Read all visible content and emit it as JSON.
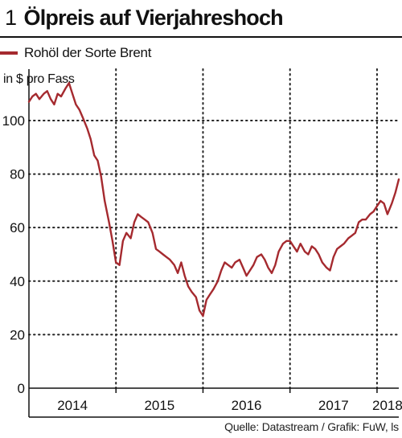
{
  "header": {
    "number": "1",
    "title": "Ölpreis auf Vierjahreshoch"
  },
  "legend": {
    "label": "Rohöl der Sorte Brent",
    "color": "#a52a2f"
  },
  "unit_label": "in $ pro Fass",
  "source": "Quelle: Datastream / Grafik: FuW, ls",
  "chart_data": {
    "type": "line",
    "title": "Ölpreis auf Vierjahreshoch",
    "ylabel": "in $ pro Fass",
    "xlabel": "",
    "ylim": [
      0,
      115
    ],
    "yticks": [
      0,
      20,
      40,
      60,
      80,
      100
    ],
    "xlim": [
      2014.0,
      2018.25
    ],
    "xticks": [
      {
        "label": "2014",
        "at": 2014.5
      },
      {
        "label": "2015",
        "at": 2015.5
      },
      {
        "label": "2016",
        "at": 2016.5
      },
      {
        "label": "2017",
        "at": 2017.5
      },
      {
        "label": "2018",
        "at": 2018.12
      }
    ],
    "year_boundaries": [
      2015.0,
      2016.0,
      2017.0,
      2018.0
    ],
    "grid": true,
    "legend": "top-left",
    "series": [
      {
        "name": "Rohöl der Sorte Brent",
        "color": "#a52a2f",
        "x": [
          2014.0,
          2014.04,
          2014.08,
          2014.12,
          2014.17,
          2014.21,
          2014.25,
          2014.29,
          2014.33,
          2014.37,
          2014.42,
          2014.46,
          2014.5,
          2014.54,
          2014.58,
          2014.62,
          2014.67,
          2014.71,
          2014.75,
          2014.79,
          2014.83,
          2014.87,
          2014.92,
          2014.96,
          2015.0,
          2015.04,
          2015.08,
          2015.12,
          2015.17,
          2015.21,
          2015.25,
          2015.29,
          2015.33,
          2015.37,
          2015.42,
          2015.46,
          2015.5,
          2015.54,
          2015.58,
          2015.62,
          2015.67,
          2015.71,
          2015.75,
          2015.79,
          2015.83,
          2015.87,
          2015.92,
          2015.96,
          2016.0,
          2016.04,
          2016.08,
          2016.12,
          2016.17,
          2016.21,
          2016.25,
          2016.29,
          2016.33,
          2016.37,
          2016.42,
          2016.46,
          2016.5,
          2016.54,
          2016.58,
          2016.62,
          2016.67,
          2016.71,
          2016.75,
          2016.79,
          2016.83,
          2016.87,
          2016.92,
          2016.96,
          2017.0,
          2017.04,
          2017.08,
          2017.12,
          2017.17,
          2017.21,
          2017.25,
          2017.29,
          2017.33,
          2017.37,
          2017.42,
          2017.46,
          2017.5,
          2017.54,
          2017.58,
          2017.62,
          2017.67,
          2017.71,
          2017.75,
          2017.79,
          2017.83,
          2017.87,
          2017.92,
          2017.96,
          2018.0,
          2018.04,
          2018.08,
          2018.12,
          2018.17,
          2018.21,
          2018.25
        ],
        "values": [
          107,
          109,
          110,
          108,
          110,
          111,
          108,
          106,
          110,
          109,
          112,
          114,
          110,
          106,
          104,
          101,
          97,
          93,
          87,
          85,
          79,
          70,
          62,
          55,
          47,
          46,
          55,
          58,
          56,
          62,
          65,
          64,
          63,
          62,
          58,
          52,
          51,
          50,
          49,
          48,
          46,
          43,
          47,
          42,
          38,
          36,
          34,
          29,
          27,
          33,
          35,
          37,
          40,
          44,
          47,
          46,
          45,
          47,
          48,
          45,
          42,
          44,
          46,
          49,
          50,
          48,
          45,
          43,
          46,
          51,
          54,
          55,
          55,
          53,
          51,
          54,
          51,
          50,
          53,
          52,
          50,
          47,
          45,
          44,
          49,
          52,
          53,
          54,
          56,
          57,
          58,
          62,
          63,
          63,
          65,
          66,
          68,
          70,
          69,
          65,
          69,
          73,
          78
        ]
      }
    ]
  }
}
